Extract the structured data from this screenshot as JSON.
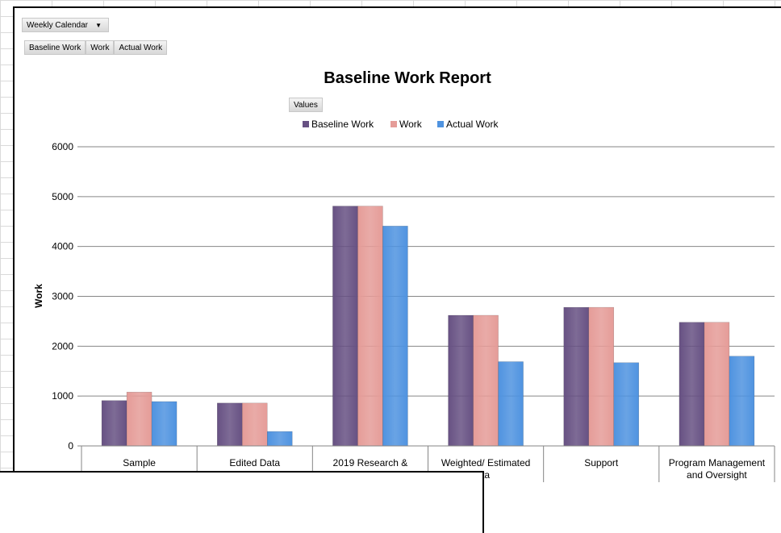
{
  "filter": {
    "calendar_label": "Weekly Calendar",
    "dropdown_icon": "chevron-down-icon"
  },
  "value_fields": [
    "Baseline Work",
    "Work",
    "Actual Work"
  ],
  "values_button": "Values",
  "colors": {
    "baseline": "#675183",
    "work": "#E59C98",
    "actual": "#4F93E0"
  },
  "chart_data": {
    "type": "bar",
    "title": "Baseline Work Report",
    "ylabel": "Work",
    "xlabel": "",
    "ylim": [
      0,
      6000
    ],
    "yticks": [
      0,
      1000,
      2000,
      3000,
      4000,
      5000,
      6000
    ],
    "legend_position": "top",
    "grid": true,
    "categories": [
      [
        "Sample"
      ],
      [
        "Edited Data"
      ],
      [
        "2019 Research &"
      ],
      [
        "Weighted/ Estimated",
        "ta"
      ],
      [
        "Support"
      ],
      [
        "Program Management",
        "and Oversight"
      ]
    ],
    "series": [
      {
        "name": "Baseline Work",
        "values": [
          910,
          860,
          4810,
          2620,
          2780,
          2480
        ]
      },
      {
        "name": "Work",
        "values": [
          1080,
          860,
          4810,
          2620,
          2780,
          2480
        ]
      },
      {
        "name": "Actual Work",
        "values": [
          890,
          290,
          4410,
          1690,
          1670,
          1800
        ]
      }
    ]
  }
}
